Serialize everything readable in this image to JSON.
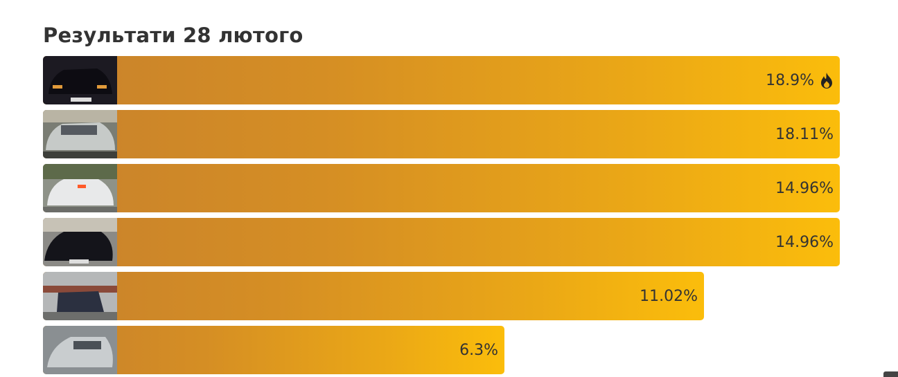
{
  "header": {
    "title": "Результати 28 лютого"
  },
  "results": {
    "items": [
      "18.9%",
      "18.11%",
      "14.96%",
      "14.96%",
      "11.02%",
      "6.3%"
    ]
  }
}
